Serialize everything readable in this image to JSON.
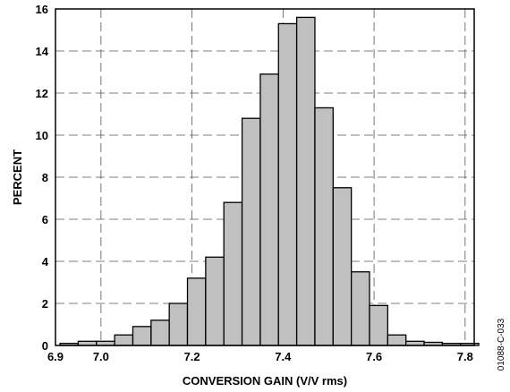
{
  "chart_data": {
    "type": "bar",
    "xlabel": "CONVERSION GAIN (V/V rms)",
    "ylabel": "PERCENT",
    "xlim": [
      6.9,
      7.82
    ],
    "ylim": [
      0,
      16
    ],
    "x_ticks": [
      "6.9",
      "7.0",
      "7.2",
      "7.4",
      "7.6",
      "7.8"
    ],
    "y_ticks": [
      "0",
      "2",
      "4",
      "6",
      "8",
      "10",
      "12",
      "14",
      "16"
    ],
    "grid": true,
    "bar_color": "#c0c0c0",
    "bins": [
      {
        "x0": 6.91,
        "x1": 6.95,
        "value": 0.1
      },
      {
        "x0": 6.95,
        "x1": 6.99,
        "value": 0.2
      },
      {
        "x0": 6.99,
        "x1": 7.03,
        "value": 0.2
      },
      {
        "x0": 7.03,
        "x1": 7.07,
        "value": 0.5
      },
      {
        "x0": 7.07,
        "x1": 7.11,
        "value": 0.9
      },
      {
        "x0": 7.11,
        "x1": 7.15,
        "value": 1.2
      },
      {
        "x0": 7.15,
        "x1": 7.19,
        "value": 2.0
      },
      {
        "x0": 7.19,
        "x1": 7.23,
        "value": 3.2
      },
      {
        "x0": 7.23,
        "x1": 7.27,
        "value": 4.2
      },
      {
        "x0": 7.27,
        "x1": 7.31,
        "value": 6.8
      },
      {
        "x0": 7.31,
        "x1": 7.35,
        "value": 10.8
      },
      {
        "x0": 7.35,
        "x1": 7.39,
        "value": 12.9
      },
      {
        "x0": 7.39,
        "x1": 7.43,
        "value": 15.3
      },
      {
        "x0": 7.43,
        "x1": 7.47,
        "value": 15.6
      },
      {
        "x0": 7.47,
        "x1": 7.51,
        "value": 11.3
      },
      {
        "x0": 7.51,
        "x1": 7.55,
        "value": 7.5
      },
      {
        "x0": 7.55,
        "x1": 7.59,
        "value": 3.5
      },
      {
        "x0": 7.59,
        "x1": 7.63,
        "value": 1.9
      },
      {
        "x0": 7.63,
        "x1": 7.67,
        "value": 0.5
      },
      {
        "x0": 7.67,
        "x1": 7.71,
        "value": 0.2
      },
      {
        "x0": 7.71,
        "x1": 7.75,
        "value": 0.15
      },
      {
        "x0": 7.75,
        "x1": 7.79,
        "value": 0.1
      },
      {
        "x0": 7.79,
        "x1": 7.83,
        "value": 0.1
      }
    ]
  },
  "figure_id": "01088-C-033"
}
